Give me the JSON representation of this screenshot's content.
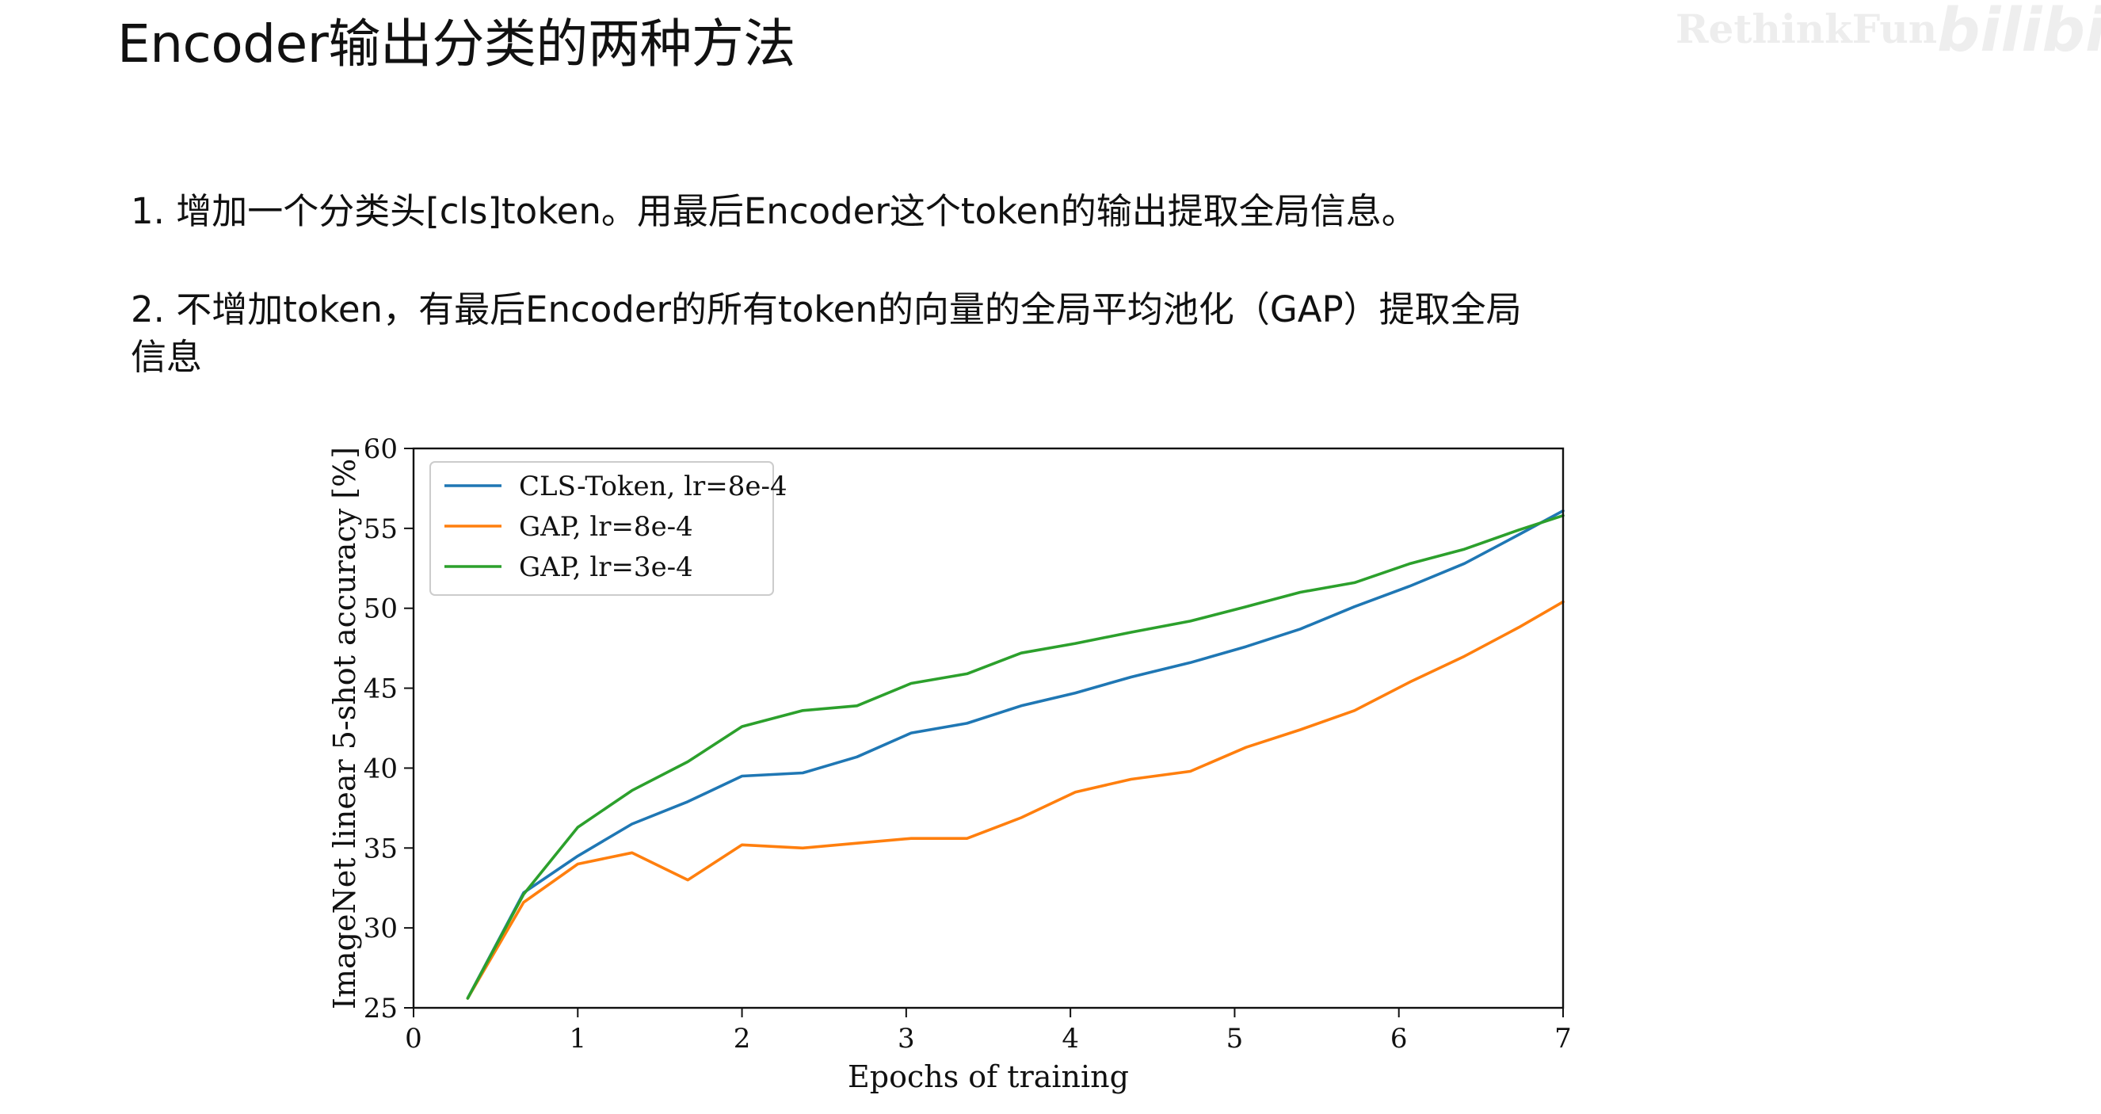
{
  "slide": {
    "title": "Encoder输出分类的两种方法",
    "bullet_1": "1. 增加一个分类头[cls]token。用最后Encoder这个token的输出提取全局信息。",
    "bullet_2": "2. 不增加token，有最后Encoder的所有token的向量的全局平均池化（GAP）提取全局",
    "bullet_2_cont": "信息"
  },
  "watermark": {
    "text": "RethinkFun",
    "logo": "bilibili"
  },
  "chart_data": {
    "type": "line",
    "title": "",
    "xlabel": "Epochs of training",
    "ylabel": "ImageNet linear 5-shot accuracy [%]",
    "xlim": [
      0,
      7
    ],
    "ylim": [
      25,
      60
    ],
    "xticks": [
      0,
      1,
      2,
      3,
      4,
      5,
      6,
      7
    ],
    "yticks": [
      25,
      30,
      35,
      40,
      45,
      50,
      55,
      60
    ],
    "grid": false,
    "legend_position": "top-left",
    "series": [
      {
        "name": "CLS-Token, lr=8e-4",
        "color": "#1f77b4",
        "x": [
          0.33,
          0.67,
          1.0,
          1.33,
          1.67,
          2.0,
          2.37,
          2.7,
          3.03,
          3.37,
          3.7,
          4.03,
          4.37,
          4.73,
          5.07,
          5.4,
          5.73,
          6.07,
          6.4,
          6.73,
          7.0
        ],
        "y": [
          25.6,
          32.2,
          34.5,
          36.5,
          37.9,
          39.5,
          39.7,
          40.7,
          42.2,
          42.8,
          43.9,
          44.7,
          45.7,
          46.6,
          47.6,
          48.7,
          50.1,
          51.4,
          52.8,
          54.6,
          56.1
        ]
      },
      {
        "name": "GAP, lr=8e-4",
        "color": "#ff7f0e",
        "x": [
          0.33,
          0.67,
          1.0,
          1.33,
          1.67,
          2.0,
          2.37,
          2.7,
          3.03,
          3.37,
          3.7,
          4.03,
          4.37,
          4.73,
          5.07,
          5.4,
          5.73,
          6.07,
          6.4,
          6.73,
          7.0
        ],
        "y": [
          25.6,
          31.6,
          34.0,
          34.7,
          33.0,
          35.2,
          35.0,
          35.3,
          35.6,
          35.6,
          36.9,
          38.5,
          39.3,
          39.8,
          41.3,
          42.4,
          43.6,
          45.4,
          47.0,
          48.8,
          50.4
        ]
      },
      {
        "name": "GAP, lr=3e-4",
        "color": "#2ca02c",
        "x": [
          0.33,
          0.67,
          1.0,
          1.33,
          1.67,
          2.0,
          2.37,
          2.7,
          3.03,
          3.37,
          3.7,
          4.03,
          4.37,
          4.73,
          5.07,
          5.4,
          5.73,
          6.07,
          6.4,
          6.73,
          7.0
        ],
        "y": [
          25.6,
          32.1,
          36.3,
          38.6,
          40.4,
          42.6,
          43.6,
          43.9,
          45.3,
          45.9,
          47.2,
          47.8,
          48.5,
          49.2,
          50.1,
          51.0,
          51.6,
          52.8,
          53.7,
          54.9,
          55.8
        ]
      }
    ]
  }
}
